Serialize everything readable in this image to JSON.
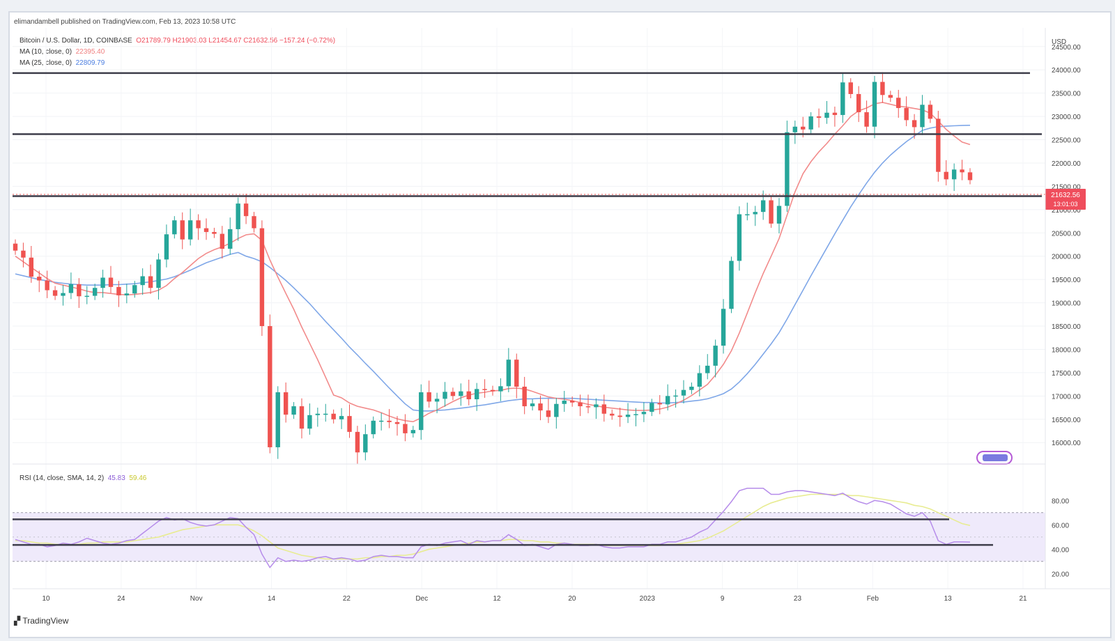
{
  "header": {
    "publisher": "elimandambell published on TradingView.com, Feb 13, 2023 10:58 UTC"
  },
  "legend": {
    "symbol": "Bitcoin / U.S. Dollar, 1D, COINBASE",
    "ohlc": "O21789.79  H21903.03  L21454.67  C21632.56  −157.24 (−0.72%)",
    "ma10_label": "MA (10, close, 0)",
    "ma10_value": "22395.40",
    "ma25_label": "MA (25, close, 0)",
    "ma25_value": "22809.79"
  },
  "rsi_legend": {
    "label": "RSI (14, close, SMA, 14, 2)",
    "rsi_value": "45.83",
    "sma_value": "59.46"
  },
  "price_tag": {
    "price": "21632.56",
    "countdown": "13:01:03"
  },
  "branding": {
    "logo_text": "TradingView"
  },
  "colors": {
    "up": "#26a69a",
    "down": "#ef5350",
    "ma10": "#f28b8b",
    "ma25": "#7fa7e8",
    "rsi": "#b68cea",
    "rsi_sma": "#e8ec92",
    "level_line": "#3d3d4a"
  },
  "chart_data": {
    "type": "candlestick",
    "currency": "USD",
    "y_axis_ticks": [
      "24500.00",
      "24000.00",
      "23500.00",
      "23000.00",
      "22500.00",
      "22000.00",
      "21500.00",
      "21000.00",
      "20500.00",
      "20000.00",
      "19500.00",
      "19000.00",
      "18500.00",
      "18000.00",
      "17500.00",
      "17000.00",
      "16500.00",
      "16000.00"
    ],
    "ylim": [
      15600,
      24900
    ],
    "x_axis_labels": [
      "10",
      "24",
      "Nov",
      "14",
      "22",
      "Dec",
      "12",
      "20",
      "2023",
      "9",
      "23",
      "Feb",
      "13",
      "21"
    ],
    "closes": [
      20120,
      19970,
      19560,
      19480,
      19270,
      19150,
      19210,
      19400,
      19140,
      19150,
      19320,
      19540,
      19340,
      19160,
      19200,
      19380,
      19570,
      19320,
      19930,
      20470,
      20770,
      20360,
      20770,
      20600,
      20520,
      20480,
      20160,
      20580,
      21130,
      20860,
      20600,
      18500,
      15900,
      17080,
      16600,
      16780,
      16300,
      16590,
      16620,
      16620,
      16500,
      16570,
      16230,
      15790,
      16180,
      16470,
      16470,
      16440,
      16400,
      16200,
      16270,
      17080,
      16880,
      16940,
      17090,
      17000,
      17100,
      16930,
      17150,
      17130,
      17100,
      17210,
      17780,
      17200,
      16780,
      16840,
      16690,
      16550,
      16830,
      16900,
      16860,
      16780,
      16760,
      16820,
      16620,
      16580,
      16550,
      16600,
      16610,
      16660,
      16850,
      16820,
      17000,
      17010,
      17130,
      17200,
      17490,
      17650,
      18080,
      18870,
      19900,
      20900,
      20900,
      20950,
      21200,
      20700,
      21080,
      22660,
      22780,
      22720,
      23000,
      22970,
      23080,
      23030,
      23730,
      23480,
      23090,
      22780,
      23740,
      23460,
      23400,
      23180,
      22920,
      22770,
      23250,
      22950,
      21810,
      21650,
      21860,
      21800,
      21632.56
    ],
    "ma10_first_x_index": 0,
    "ma10": [
      20000,
      19880,
      19760,
      19640,
      19520,
      19420,
      19380,
      19340,
      19300,
      19250,
      19220,
      19220,
      19200,
      19180,
      19170,
      19180,
      19200,
      19220,
      19270,
      19370,
      19520,
      19650,
      19800,
      19950,
      20060,
      20140,
      20200,
      20280,
      20380,
      20460,
      20480,
      20340,
      19920,
      19550,
      19200,
      18860,
      18480,
      18130,
      17780,
      17400,
      17020,
      16960,
      16850,
      16780,
      16740,
      16700,
      16640,
      16570,
      16510,
      16470,
      16450,
      16530,
      16630,
      16700,
      16790,
      16880,
      16960,
      17020,
      17060,
      17080,
      17110,
      17120,
      17160,
      17170,
      17150,
      17100,
      17040,
      16980,
      16950,
      16930,
      16900,
      16860,
      16820,
      16790,
      16760,
      16740,
      16720,
      16700,
      16690,
      16690,
      16700,
      16720,
      16760,
      16830,
      16910,
      17010,
      17130,
      17250,
      17450,
      17680,
      17970,
      18350,
      18780,
      19220,
      19630,
      20000,
      20380,
      20880,
      21380,
      21770,
      22030,
      22240,
      22420,
      22620,
      22800,
      23000,
      23120,
      23180,
      23270,
      23300,
      23260,
      23220,
      23200,
      23170,
      23140,
      23070,
      22900,
      22720,
      22580,
      22450,
      22395.4
    ],
    "ma25_first_x_index": 0,
    "ma25": [
      19620,
      19580,
      19540,
      19500,
      19470,
      19440,
      19420,
      19400,
      19390,
      19380,
      19380,
      19380,
      19390,
      19390,
      19400,
      19410,
      19430,
      19450,
      19480,
      19510,
      19560,
      19630,
      19700,
      19780,
      19860,
      19920,
      19980,
      20040,
      20080,
      20000,
      19950,
      19880,
      19760,
      19620,
      19480,
      19320,
      19150,
      18980,
      18790,
      18600,
      18420,
      18240,
      18050,
      17880,
      17700,
      17530,
      17350,
      17170,
      17000,
      16830,
      16700,
      16680,
      16680,
      16690,
      16700,
      16720,
      16740,
      16760,
      16790,
      16810,
      16840,
      16870,
      16900,
      16920,
      16940,
      16940,
      16950,
      16950,
      16950,
      16950,
      16950,
      16940,
      16930,
      16920,
      16910,
      16900,
      16890,
      16880,
      16870,
      16860,
      16860,
      16850,
      16850,
      16860,
      16870,
      16890,
      16910,
      16940,
      16990,
      17050,
      17150,
      17300,
      17480,
      17680,
      17900,
      18120,
      18360,
      18650,
      18960,
      19270,
      19580,
      19880,
      20180,
      20480,
      20770,
      21060,
      21320,
      21570,
      21800,
      22000,
      22170,
      22320,
      22460,
      22580,
      22700,
      22750,
      22780,
      22790,
      22800,
      22805,
      22809.79
    ],
    "horizontal_levels": [
      23930,
      22620,
      21290
    ],
    "rsi": {
      "ylim": [
        15,
        95
      ],
      "ticks": [
        "80.00",
        "60.00",
        "40.00",
        "20.00"
      ],
      "band": [
        30,
        70
      ],
      "horizontal_levels": [
        64.5,
        43.5
      ],
      "values": [
        48,
        46,
        44,
        44,
        42,
        43,
        45,
        44,
        46,
        49,
        47,
        45,
        44,
        45,
        47,
        48,
        53,
        58,
        63,
        66,
        64,
        65,
        62,
        60,
        59,
        60,
        63,
        66,
        65,
        58,
        52,
        36,
        25,
        33,
        30,
        31,
        30,
        31,
        33,
        34,
        32,
        33,
        32,
        30,
        31,
        34,
        35,
        34,
        34,
        33,
        33,
        42,
        44,
        43,
        45,
        46,
        47,
        44,
        47,
        46,
        47,
        47,
        52,
        48,
        43,
        44,
        42,
        40,
        44,
        45,
        44,
        43,
        43,
        44,
        42,
        41,
        41,
        42,
        42,
        42,
        44,
        44,
        46,
        46,
        48,
        50,
        54,
        57,
        64,
        71,
        79,
        88,
        90,
        90,
        90,
        85,
        85,
        87,
        88,
        88,
        87,
        86,
        85,
        84,
        86,
        82,
        79,
        77,
        80,
        79,
        77,
        73,
        69,
        67,
        70,
        63,
        47,
        44,
        46,
        46,
        45.83
      ],
      "sma_values": [
        47,
        47,
        46,
        45,
        45,
        44,
        44,
        44,
        44,
        45,
        45,
        46,
        46,
        46,
        46,
        47,
        48,
        49,
        50,
        52,
        54,
        56,
        57,
        58,
        59,
        60,
        60,
        60,
        60,
        58,
        55,
        51,
        46,
        41,
        39,
        37,
        35,
        34,
        33,
        32,
        32,
        32,
        32,
        32,
        33,
        33,
        34,
        34,
        35,
        35,
        36,
        38,
        40,
        41,
        42,
        43,
        44,
        45,
        46,
        46,
        47,
        47,
        48,
        48,
        47,
        47,
        46,
        46,
        45,
        45,
        44,
        44,
        44,
        44,
        43,
        43,
        43,
        43,
        43,
        43,
        43,
        43,
        44,
        44,
        45,
        46,
        47,
        49,
        52,
        55,
        59,
        63,
        67,
        71,
        75,
        78,
        80,
        82,
        83,
        84,
        85,
        85,
        85,
        85,
        85,
        84,
        84,
        83,
        82,
        81,
        80,
        79,
        78,
        76,
        75,
        73,
        70,
        67,
        64,
        61,
        59.46
      ]
    }
  }
}
